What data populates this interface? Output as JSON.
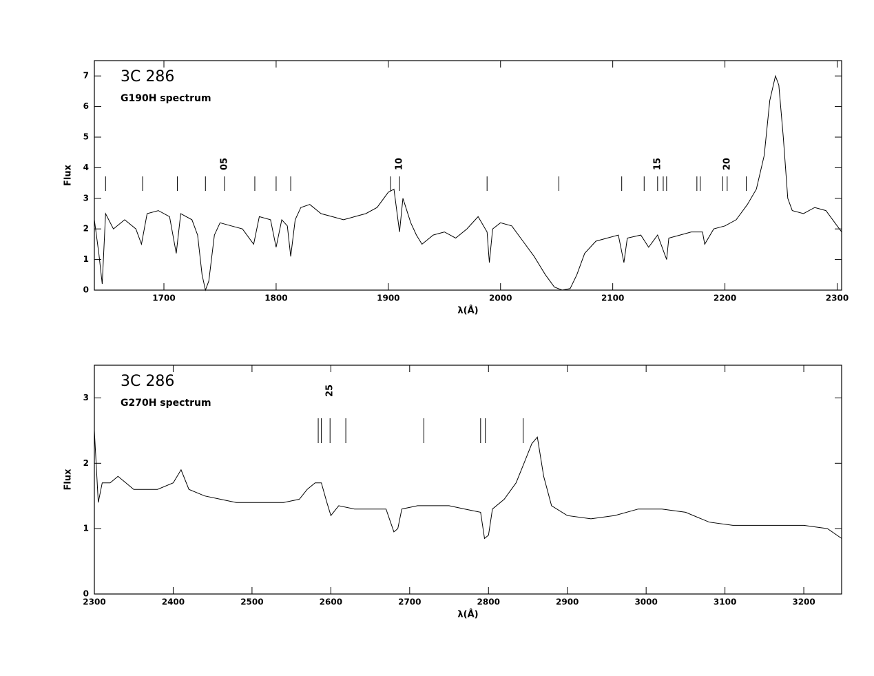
{
  "chart_data": [
    {
      "type": "line",
      "title": "3C 286",
      "subtitle": "G190H spectrum",
      "x_label": "λ(Å)",
      "y_label": "Flux",
      "color": "#000000",
      "xlim": [
        1638,
        2304
      ],
      "ylim": [
        0,
        7.5
      ],
      "xticks": [
        1700,
        1800,
        1900,
        2000,
        2100,
        2200,
        2300
      ],
      "yticks": [
        0,
        1,
        2,
        3,
        4,
        5,
        6,
        7
      ],
      "x": [
        1638,
        1642,
        1645,
        1648,
        1655,
        1665,
        1675,
        1680,
        1685,
        1695,
        1705,
        1711,
        1715,
        1725,
        1730,
        1734,
        1737,
        1740,
        1745,
        1750,
        1760,
        1770,
        1780,
        1785,
        1795,
        1800,
        1805,
        1810,
        1813,
        1817,
        1822,
        1830,
        1840,
        1850,
        1860,
        1870,
        1880,
        1890,
        1900,
        1905,
        1910,
        1913,
        1920,
        1925,
        1930,
        1940,
        1950,
        1960,
        1970,
        1980,
        1988,
        1990,
        1993,
        2000,
        2010,
        2020,
        2030,
        2040,
        2048,
        2055,
        2062,
        2068,
        2075,
        2085,
        2095,
        2105,
        2110,
        2113,
        2125,
        2132,
        2140,
        2148,
        2150,
        2160,
        2170,
        2180,
        2182,
        2190,
        2200,
        2210,
        2220,
        2228,
        2235,
        2240,
        2245,
        2248,
        2252,
        2256,
        2260,
        2270,
        2280,
        2290,
        2300,
        2304
      ],
      "values": [
        2.3,
        1.2,
        0.2,
        2.5,
        2.0,
        2.3,
        2.0,
        1.5,
        2.5,
        2.6,
        2.4,
        1.2,
        2.5,
        2.3,
        1.8,
        0.5,
        0,
        0.3,
        1.8,
        2.2,
        2.1,
        2.0,
        1.5,
        2.4,
        2.3,
        1.4,
        2.3,
        2.1,
        1.1,
        2.3,
        2.7,
        2.8,
        2.5,
        2.4,
        2.3,
        2.4,
        2.5,
        2.7,
        3.2,
        3.3,
        1.9,
        3.0,
        2.2,
        1.8,
        1.5,
        1.8,
        1.9,
        1.7,
        2.0,
        2.4,
        1.9,
        0.9,
        2.0,
        2.2,
        2.1,
        1.6,
        1.1,
        0.5,
        0.1,
        0,
        0.05,
        0.5,
        1.2,
        1.6,
        1.7,
        1.8,
        0.9,
        1.7,
        1.8,
        1.4,
        1.8,
        1.0,
        1.7,
        1.8,
        1.9,
        1.9,
        1.5,
        2.0,
        2.1,
        2.3,
        2.8,
        3.3,
        4.4,
        6.2,
        7.0,
        6.7,
        5.0,
        3.0,
        2.6,
        2.5,
        2.7,
        2.6,
        2.1,
        1.9
      ],
      "line_markers": [
        1648,
        1681,
        1712,
        1737,
        1754,
        1781,
        1800,
        1813,
        1902,
        1910,
        1988,
        2052,
        2108,
        2128,
        2140,
        2145,
        2148,
        2175,
        2178,
        2198,
        2202,
        2219
      ],
      "marker_labels": [
        {
          "x": 1754,
          "label": "05"
        },
        {
          "x": 1910,
          "label": "10"
        },
        {
          "x": 2140,
          "label": "15"
        },
        {
          "x": 2202,
          "label": "20"
        }
      ]
    },
    {
      "type": "line",
      "title": "3C 286",
      "subtitle": "G270H spectrum",
      "x_label": "λ(Å)",
      "y_label": "Flux",
      "color": "#000000",
      "xlim": [
        2300,
        3248
      ],
      "ylim": [
        0,
        3.5
      ],
      "xticks": [
        2300,
        2400,
        2500,
        2600,
        2700,
        2800,
        2900,
        3000,
        3100,
        3200
      ],
      "yticks": [
        0,
        1,
        2,
        3
      ],
      "x": [
        2300,
        2305,
        2310,
        2320,
        2330,
        2340,
        2350,
        2360,
        2380,
        2400,
        2410,
        2420,
        2440,
        2460,
        2480,
        2500,
        2520,
        2540,
        2560,
        2570,
        2580,
        2588,
        2595,
        2600,
        2610,
        2630,
        2650,
        2670,
        2680,
        2685,
        2690,
        2710,
        2730,
        2750,
        2770,
        2790,
        2795,
        2800,
        2805,
        2820,
        2835,
        2845,
        2855,
        2862,
        2870,
        2880,
        2900,
        2930,
        2960,
        2990,
        3020,
        3050,
        3080,
        3110,
        3140,
        3170,
        3200,
        3230,
        3248
      ],
      "values": [
        2.5,
        1.4,
        1.7,
        1.7,
        1.8,
        1.7,
        1.6,
        1.6,
        1.6,
        1.7,
        1.9,
        1.6,
        1.5,
        1.45,
        1.4,
        1.4,
        1.4,
        1.4,
        1.45,
        1.6,
        1.7,
        1.7,
        1.4,
        1.2,
        1.35,
        1.3,
        1.3,
        1.3,
        0.95,
        1.0,
        1.3,
        1.35,
        1.35,
        1.35,
        1.3,
        1.25,
        0.85,
        0.9,
        1.3,
        1.45,
        1.7,
        2.0,
        2.3,
        2.4,
        1.8,
        1.35,
        1.2,
        1.15,
        1.2,
        1.3,
        1.3,
        1.25,
        1.1,
        1.05,
        1.05,
        1.05,
        1.05,
        1.0,
        0.85
      ],
      "line_markers": [
        2584,
        2588,
        2599,
        2619,
        2718,
        2790,
        2796,
        2844
      ],
      "marker_labels": [
        {
          "x": 2599,
          "label": "25"
        }
      ]
    }
  ]
}
